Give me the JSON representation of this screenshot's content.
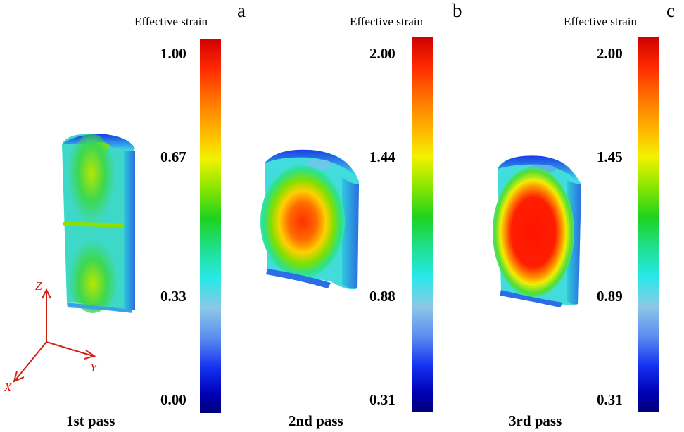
{
  "panels": [
    {
      "letter": "a",
      "title": "Effective strain",
      "ticks": [
        "1.00",
        "0.67",
        "0.33",
        "0.00"
      ],
      "caption": "1st pass"
    },
    {
      "letter": "b",
      "title": "Effective strain",
      "ticks": [
        "2.00",
        "1.44",
        "0.88",
        "0.31"
      ],
      "caption": "2nd pass"
    },
    {
      "letter": "c",
      "title": "Effective strain",
      "ticks": [
        "2.00",
        "1.45",
        "0.89",
        "0.31"
      ],
      "caption": "3rd pass"
    }
  ],
  "axes": {
    "z": "Z",
    "y": "Y",
    "x": "X"
  },
  "colormap": [
    "#d00000",
    "#ff7a00",
    "#f2f200",
    "#1ed21e",
    "#28e8e8",
    "#5a8cf0",
    "#0000b4"
  ]
}
